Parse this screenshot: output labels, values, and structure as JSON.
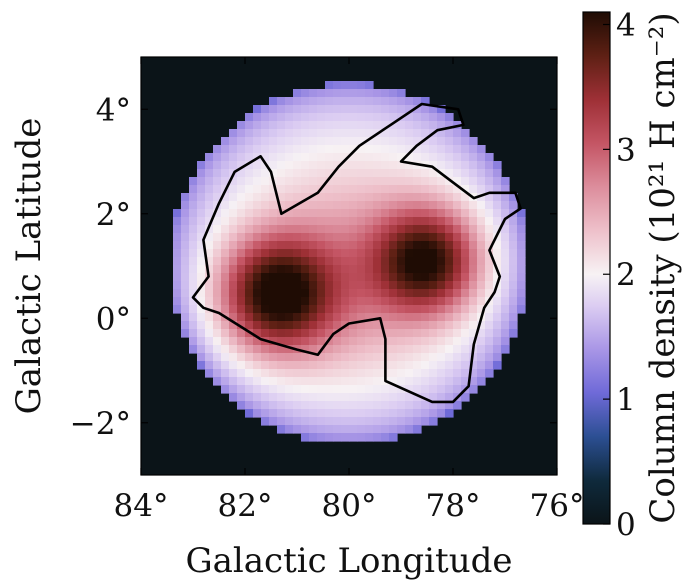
{
  "chart_data": {
    "type": "heatmap",
    "xlabel": "Galactic Longitude",
    "ylabel": "Galactic Latitude",
    "x_axis": {
      "range": [
        84,
        76
      ],
      "reversed": true,
      "ticks": [
        84,
        82,
        80,
        78,
        76
      ],
      "tick_labels": [
        "84°",
        "82°",
        "80°",
        "78°",
        "76°"
      ]
    },
    "y_axis": {
      "range": [
        -3,
        5
      ],
      "ticks": [
        4,
        2,
        0,
        -2
      ],
      "tick_labels": [
        "4°",
        "2°",
        "0°",
        "−2°"
      ]
    },
    "colorbar": {
      "label": "Column density (10²¹ H cm⁻²)",
      "range": [
        0,
        4.1
      ],
      "ticks": [
        0,
        1,
        2,
        3,
        4
      ],
      "tick_labels": [
        "0",
        "1",
        "2",
        "3",
        "4"
      ],
      "stops": [
        {
          "value": 0.0,
          "color": "#0b1418"
        },
        {
          "value": 0.35,
          "color": "#0f2a3c"
        },
        {
          "value": 0.7,
          "color": "#2c4f93"
        },
        {
          "value": 1.05,
          "color": "#6f6ad8"
        },
        {
          "value": 1.4,
          "color": "#a996e6"
        },
        {
          "value": 1.75,
          "color": "#dccdf2"
        },
        {
          "value": 2.0,
          "color": "#f7f2f4"
        },
        {
          "value": 2.35,
          "color": "#eec0ca"
        },
        {
          "value": 2.7,
          "color": "#dc8d9c"
        },
        {
          "value": 3.05,
          "color": "#c45564"
        },
        {
          "value": 3.4,
          "color": "#9e3036"
        },
        {
          "value": 3.75,
          "color": "#5e2014"
        },
        {
          "value": 4.1,
          "color": "#1f0c04"
        }
      ]
    },
    "field": {
      "center_l": 80.0,
      "center_b": 1.05,
      "radius_deg": 3.45,
      "background_value": 0,
      "edge_value": 1.0,
      "base_interior_value": 2.2,
      "peaks": [
        {
          "l": 81.4,
          "b": 0.45,
          "amplitude": 2.1,
          "sigma": 0.75
        },
        {
          "l": 78.5,
          "b": 1.1,
          "amplitude": 1.95,
          "sigma": 0.7
        },
        {
          "l": 80.0,
          "b": 0.8,
          "amplitude": 0.45,
          "sigma": 1.2
        }
      ]
    },
    "contour_level": 2,
    "contour_path": [
      [
        77.9,
        4.0
      ],
      [
        78.6,
        4.1
      ],
      [
        79.2,
        3.7
      ],
      [
        79.8,
        3.3
      ],
      [
        80.2,
        2.9
      ],
      [
        80.6,
        2.4
      ],
      [
        81.3,
        2.0
      ],
      [
        81.5,
        2.8
      ],
      [
        81.7,
        3.1
      ],
      [
        82.2,
        2.8
      ],
      [
        82.5,
        2.2
      ],
      [
        82.8,
        1.5
      ],
      [
        82.7,
        0.8
      ],
      [
        83.0,
        0.4
      ],
      [
        82.8,
        0.2
      ],
      [
        82.5,
        0.1
      ],
      [
        81.7,
        -0.4
      ],
      [
        81.0,
        -0.6
      ],
      [
        80.6,
        -0.7
      ],
      [
        80.3,
        -0.3
      ],
      [
        80.0,
        -0.1
      ],
      [
        79.4,
        0.0
      ],
      [
        79.3,
        -0.4
      ],
      [
        79.3,
        -1.2
      ],
      [
        78.4,
        -1.6
      ],
      [
        78.0,
        -1.6
      ],
      [
        77.7,
        -1.3
      ],
      [
        77.6,
        -0.5
      ],
      [
        77.4,
        0.2
      ],
      [
        77.2,
        0.5
      ],
      [
        77.1,
        0.8
      ],
      [
        77.3,
        1.3
      ],
      [
        77.0,
        1.9
      ],
      [
        76.7,
        2.1
      ],
      [
        76.8,
        2.4
      ],
      [
        77.3,
        2.4
      ],
      [
        77.6,
        2.3
      ],
      [
        78.0,
        2.6
      ],
      [
        78.4,
        2.9
      ],
      [
        79.0,
        3.0
      ],
      [
        78.7,
        3.3
      ],
      [
        78.3,
        3.6
      ],
      [
        77.8,
        3.7
      ],
      [
        77.9,
        4.0
      ]
    ]
  }
}
